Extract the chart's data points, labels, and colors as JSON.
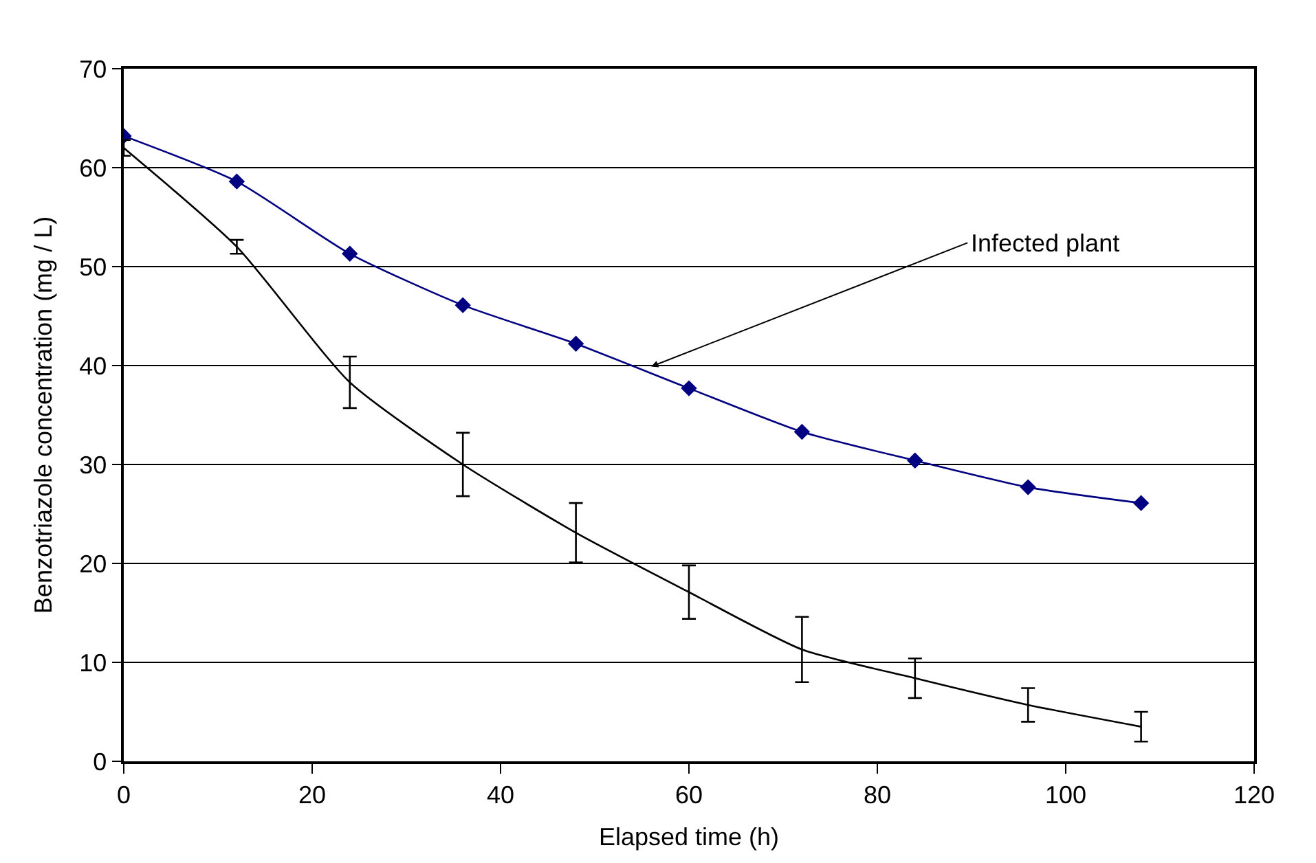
{
  "chart_data": {
    "type": "line",
    "xlabel": "Elapsed time (h)",
    "ylabel": "Benzotriazole concentration (mg / L)",
    "x": [
      0,
      12,
      24,
      36,
      48,
      60,
      72,
      84,
      96,
      108
    ],
    "series": [
      {
        "color": "#000080",
        "marker": "diamond",
        "values": [
          63.2,
          58.6,
          51.3,
          46.1,
          42.2,
          37.7,
          33.3,
          30.4,
          27.7,
          26.1
        ]
      },
      {
        "color": "#000000",
        "marker": "none",
        "values": [
          62,
          52.0,
          38.3,
          30,
          23.1,
          17.1,
          11.3,
          8.4,
          5.7,
          3.5
        ],
        "errors": [
          0.8,
          0.7,
          2.6,
          3.2,
          3,
          2.7,
          3.3,
          2,
          1.7,
          1.5
        ]
      }
    ],
    "annotations": [
      {
        "text": "Infected plant",
        "x": 56,
        "y": 39.9
      }
    ],
    "xlim": [
      0,
      120
    ],
    "xticks": [
      0,
      20,
      40,
      60,
      80,
      100,
      120
    ],
    "ylim": [
      0,
      70
    ],
    "yticks": [
      0,
      10,
      20,
      30,
      40,
      50,
      60,
      70
    ],
    "grid": "y"
  }
}
